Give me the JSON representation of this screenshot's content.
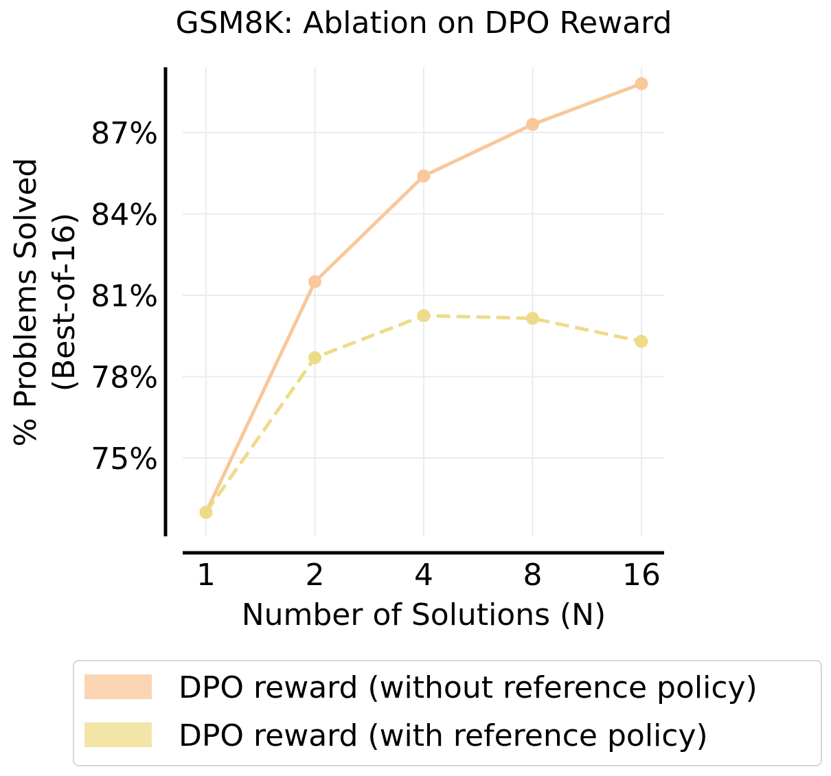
{
  "chart_data": {
    "type": "line",
    "title": "GSM8K: Ablation on DPO Reward",
    "xlabel": "Number of Solutions (N)",
    "ylabel_lines": [
      "% Problems Solved",
      "(Best-of-16)"
    ],
    "categories": [
      "1",
      "2",
      "4",
      "8",
      "16"
    ],
    "yticks": [
      75,
      78,
      81,
      84,
      87
    ],
    "ytick_labels": [
      "75%",
      "78%",
      "81%",
      "84%",
      "87%"
    ],
    "ylim": [
      72.0,
      89.5
    ],
    "grid": true,
    "legend_position": "bottom",
    "series": [
      {
        "name": "DPO reward (without reference policy)",
        "values": [
          73.0,
          81.5,
          85.4,
          87.3,
          88.8
        ],
        "color": "#f8c89a",
        "legend_color": "#fbd5b3",
        "dash": "solid"
      },
      {
        "name": "DPO reward (with reference policy)",
        "values": [
          73.0,
          78.7,
          80.25,
          80.15,
          79.3
        ],
        "color": "#eedb88",
        "legend_color": "#f3e5a6",
        "dash": "dashed"
      }
    ]
  }
}
